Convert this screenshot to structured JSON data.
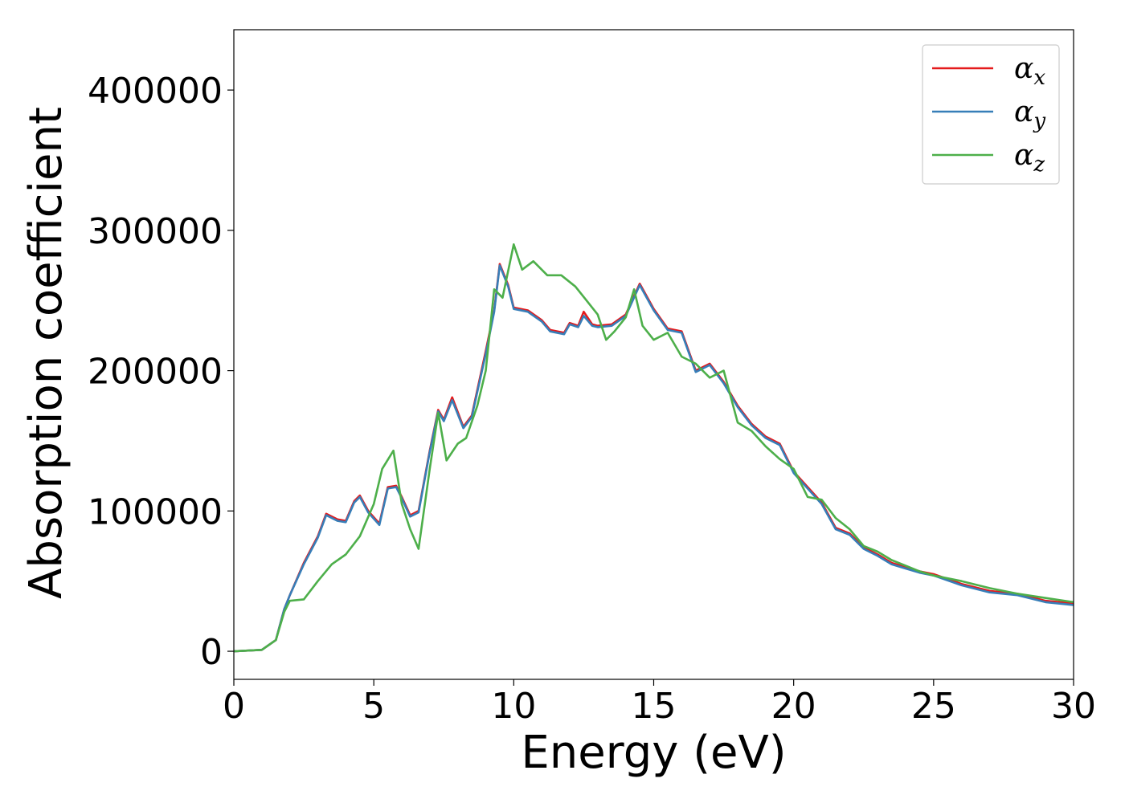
{
  "chart_data": {
    "type": "line",
    "xlabel": "Energy (eV)",
    "ylabel": "Absorption coefficient",
    "xlim": [
      0,
      30
    ],
    "ylim": [
      -20000,
      443000
    ],
    "xticks": [
      0,
      5,
      10,
      15,
      20,
      25,
      30
    ],
    "yticks": [
      0,
      100000,
      200000,
      300000,
      400000
    ],
    "grid": false,
    "legend_position": "top-right",
    "series": [
      {
        "name": "α_x",
        "symbol": "α",
        "subscript": "x",
        "color": "#e41a1c",
        "x": [
          0,
          1,
          1.5,
          1.8,
          2,
          2.5,
          3,
          3.3,
          3.7,
          4,
          4.3,
          4.5,
          4.8,
          5.2,
          5.5,
          5.8,
          6,
          6.3,
          6.6,
          7,
          7.3,
          7.5,
          7.8,
          8.2,
          8.5,
          9,
          9.3,
          9.5,
          9.8,
          10,
          10.5,
          11,
          11.3,
          11.8,
          12,
          12.3,
          12.5,
          12.8,
          13,
          13.5,
          14,
          14.5,
          15,
          15.5,
          16,
          16.5,
          17,
          17.5,
          18,
          18.5,
          19,
          19.5,
          20,
          20.5,
          21,
          21.5,
          22,
          22.5,
          23,
          23.5,
          24,
          24.5,
          25,
          26,
          27,
          28,
          29,
          30
        ],
        "y": [
          0,
          1000,
          8000,
          30000,
          40000,
          63000,
          82000,
          98000,
          94000,
          93000,
          107000,
          111000,
          100000,
          91000,
          117000,
          118000,
          110000,
          97000,
          100000,
          143000,
          172000,
          165000,
          181000,
          160000,
          168000,
          214000,
          243000,
          276000,
          261000,
          245000,
          243000,
          236000,
          229000,
          227000,
          234000,
          232000,
          242000,
          233000,
          232000,
          233000,
          240000,
          262000,
          244000,
          230000,
          228000,
          200000,
          205000,
          192000,
          175000,
          162000,
          153000,
          148000,
          128000,
          117000,
          106000,
          88000,
          84000,
          74000,
          69000,
          63000,
          60000,
          57000,
          55000,
          48000,
          43000,
          41000,
          36000,
          34000
        ]
      },
      {
        "name": "α_y",
        "symbol": "α",
        "subscript": "y",
        "color": "#377eb8",
        "x": [
          0,
          1,
          1.5,
          1.8,
          2,
          2.5,
          3,
          3.3,
          3.7,
          4,
          4.3,
          4.5,
          4.8,
          5.2,
          5.5,
          5.8,
          6,
          6.3,
          6.6,
          7,
          7.3,
          7.5,
          7.8,
          8.2,
          8.5,
          9,
          9.3,
          9.5,
          9.8,
          10,
          10.5,
          11,
          11.3,
          11.8,
          12,
          12.3,
          12.5,
          12.8,
          13,
          13.5,
          14,
          14.5,
          15,
          15.5,
          16,
          16.5,
          17,
          17.5,
          18,
          18.5,
          19,
          19.5,
          20,
          20.5,
          21,
          21.5,
          22,
          22.5,
          23,
          23.5,
          24,
          24.5,
          25,
          26,
          27,
          28,
          29,
          30
        ],
        "y": [
          0,
          1000,
          8000,
          30000,
          40000,
          62000,
          81000,
          97000,
          93000,
          92000,
          106000,
          110000,
          99000,
          90000,
          116000,
          117000,
          109000,
          96000,
          99000,
          142000,
          171000,
          164000,
          179000,
          159000,
          167000,
          212000,
          242000,
          275000,
          260000,
          244000,
          242000,
          235000,
          228000,
          226000,
          233000,
          231000,
          239000,
          232000,
          231000,
          232000,
          239000,
          261000,
          243000,
          229000,
          227000,
          199000,
          204000,
          191000,
          174000,
          161000,
          152000,
          147000,
          127000,
          116000,
          105000,
          87000,
          83000,
          73000,
          68000,
          62000,
          59000,
          56000,
          54000,
          47000,
          42000,
          40000,
          35000,
          33000
        ]
      },
      {
        "name": "α_z",
        "symbol": "α",
        "subscript": "z",
        "color": "#4daf4a",
        "x": [
          0,
          1,
          1.5,
          1.8,
          2,
          2.5,
          3,
          3.5,
          4,
          4.5,
          5,
          5.3,
          5.7,
          6,
          6.3,
          6.6,
          7,
          7.3,
          7.6,
          8,
          8.3,
          8.7,
          9,
          9.3,
          9.6,
          10,
          10.3,
          10.7,
          11.2,
          11.7,
          12.2,
          12.6,
          13,
          13.3,
          13.6,
          14,
          14.3,
          14.6,
          15,
          15.5,
          16,
          16.5,
          17,
          17.5,
          18,
          18.5,
          19,
          19.5,
          20,
          20.5,
          21,
          21.5,
          22,
          22.5,
          23,
          23.5,
          24,
          24.5,
          25,
          26,
          27,
          28,
          29,
          30
        ],
        "y": [
          0,
          1000,
          8000,
          28000,
          36000,
          37000,
          50000,
          62000,
          69000,
          82000,
          105000,
          130000,
          143000,
          105000,
          87000,
          73000,
          130000,
          170000,
          136000,
          148000,
          152000,
          175000,
          200000,
          258000,
          252000,
          290000,
          272000,
          278000,
          268000,
          268000,
          260000,
          250000,
          240000,
          222000,
          228000,
          238000,
          258000,
          232000,
          222000,
          227000,
          210000,
          205000,
          195000,
          200000,
          163000,
          157000,
          146000,
          137000,
          130000,
          110000,
          108000,
          95000,
          87000,
          75000,
          71000,
          65000,
          61000,
          57000,
          54000,
          50000,
          45000,
          41000,
          38000,
          35000
        ]
      }
    ]
  }
}
